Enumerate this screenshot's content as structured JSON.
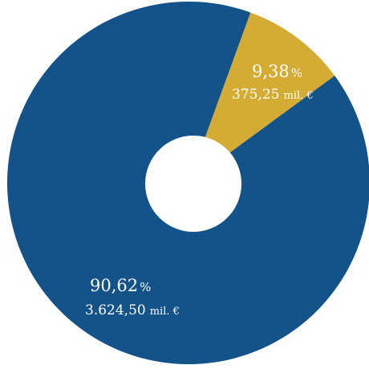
{
  "chart_data": {
    "type": "pie",
    "donut": true,
    "unit": "mil. €",
    "slices": [
      {
        "percent": 90.62,
        "value": 3624.5,
        "pct_label": "90,62",
        "pct_symbol": "%",
        "value_label": "3.624,50",
        "value_unit": "mil. €",
        "color": "#13538a"
      },
      {
        "percent": 9.38,
        "value": 375.25,
        "pct_label": "9,38",
        "pct_symbol": "%",
        "value_label": "375,25",
        "value_unit": "mil. €",
        "color": "#d4ac34"
      }
    ],
    "hole_color": "#ffffff"
  }
}
